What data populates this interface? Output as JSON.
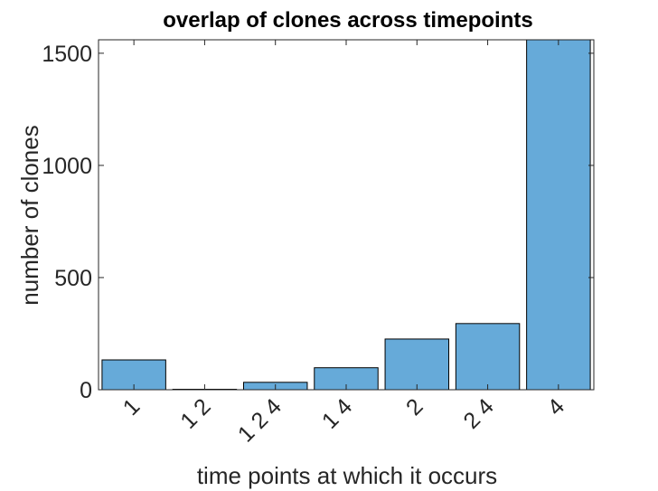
{
  "chart_data": {
    "type": "bar",
    "title": "overlap of clones across timepoints",
    "xlabel": "time points at which it occurs",
    "ylabel": "number of clones",
    "categories": [
      "1",
      "1 2",
      "1 2 4",
      "1 4",
      "2",
      "2 4",
      "4"
    ],
    "values": [
      133,
      2,
      33,
      98,
      226,
      295,
      1560
    ],
    "ylim": [
      0,
      1560
    ],
    "yticks": [
      0,
      500,
      1000,
      1500
    ],
    "ytick_labels": [
      "0",
      "500",
      "1000",
      "1500"
    ],
    "bar_color": "#66aad9",
    "grid": false,
    "xtick_rotation": -45
  }
}
